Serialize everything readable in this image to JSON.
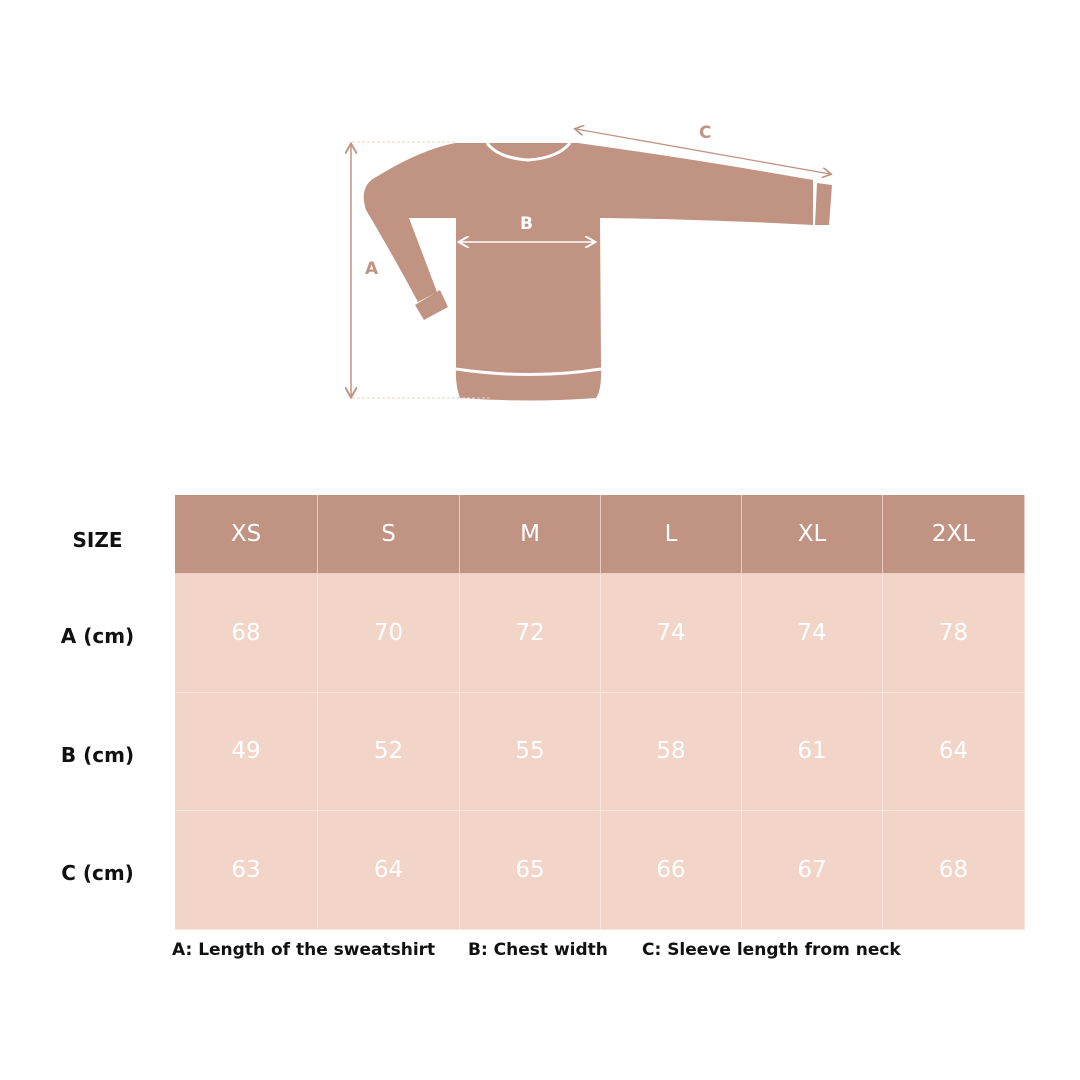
{
  "colors": {
    "header_bg": "#c09383",
    "cell_bg": "#f2d5c8",
    "garment": "#c09383",
    "cell_text": "#ffffff"
  },
  "diagram": {
    "labels": {
      "a": "A",
      "b": "B",
      "c": "C"
    }
  },
  "table": {
    "size_label": "SIZE",
    "sizes": [
      "XS",
      "S",
      "M",
      "L",
      "XL",
      "2XL"
    ],
    "rows": [
      {
        "label": "A (cm)",
        "values": [
          "68",
          "70",
          "72",
          "74",
          "74",
          "78"
        ]
      },
      {
        "label": "B (cm)",
        "values": [
          "49",
          "52",
          "55",
          "58",
          "61",
          "64"
        ]
      },
      {
        "label": "C (cm)",
        "values": [
          "63",
          "64",
          "65",
          "66",
          "67",
          "68"
        ]
      }
    ]
  },
  "legend": {
    "a": "A: Length of the sweatshirt",
    "b": "B: Chest width",
    "c": "C: Sleeve length from neck"
  }
}
